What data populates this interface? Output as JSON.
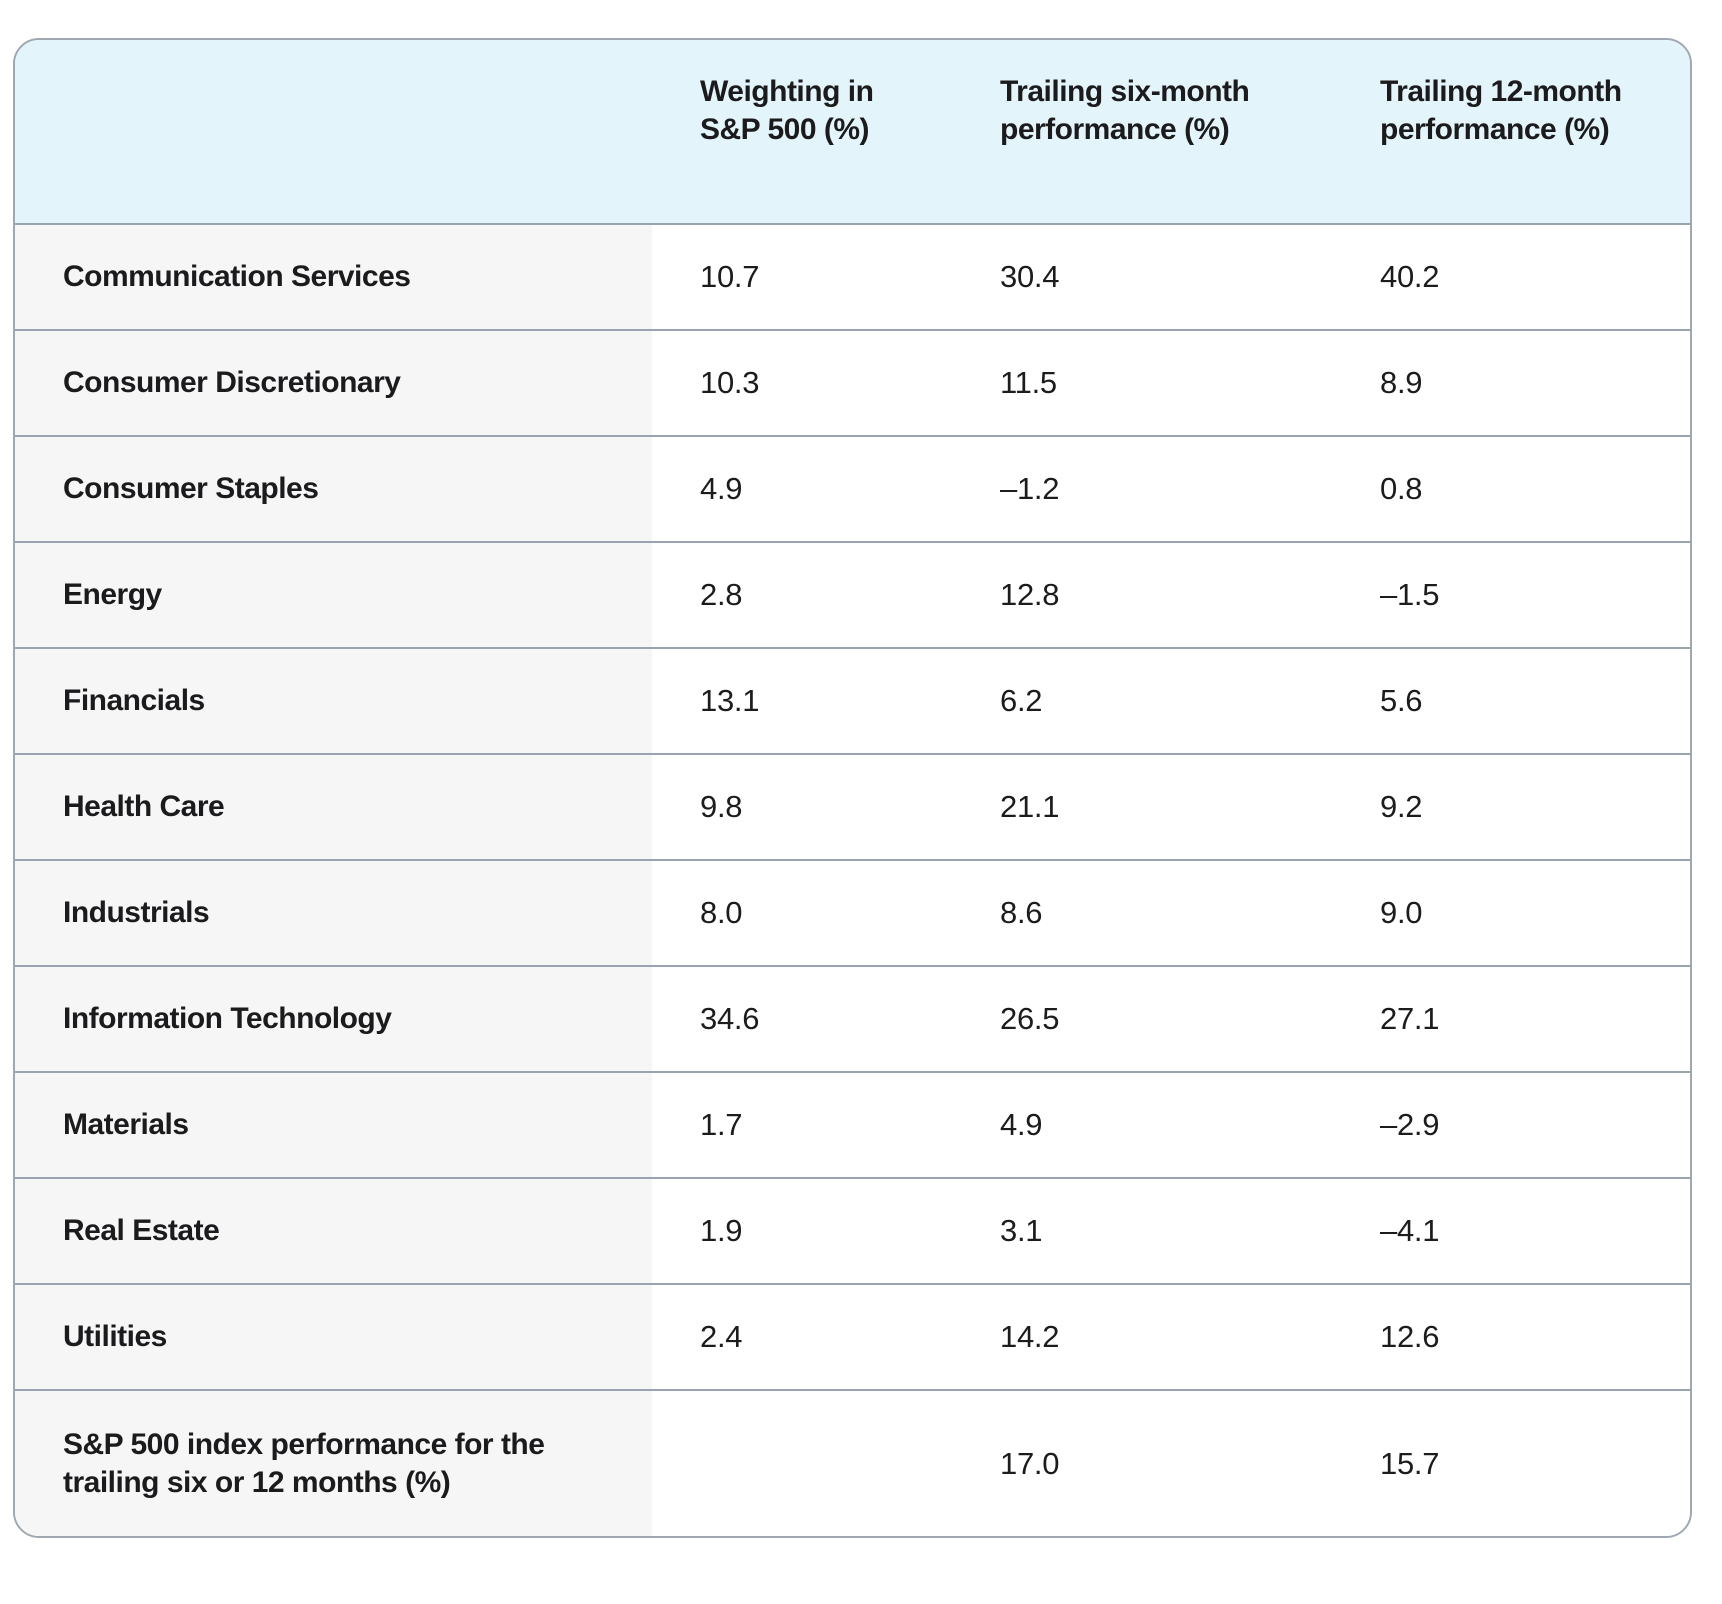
{
  "style": {
    "header_bg": "#e4f4fb",
    "label_column_bg": "#f6f6f7",
    "row_divider_color": "#9aa4ae",
    "outer_border_color": "#9fa8b0",
    "text_color": "#1b1b1d",
    "page_bg": "#ffffff"
  },
  "table": {
    "columns": [
      {
        "label": ""
      },
      {
        "label": "Weighting in S&P 500 (%)"
      },
      {
        "label": "Trailing six-month performance (%)"
      },
      {
        "label": "Trailing 12-month performance (%)"
      }
    ],
    "rows": [
      {
        "label": "Communication Services",
        "weighting": "10.7",
        "six_month": "30.4",
        "twelve_month": "40.2"
      },
      {
        "label": "Consumer Discretionary",
        "weighting": "10.3",
        "six_month": "11.5",
        "twelve_month": "8.9"
      },
      {
        "label": "Consumer Staples",
        "weighting": "4.9",
        "six_month": "–1.2",
        "twelve_month": "0.8"
      },
      {
        "label": "Energy",
        "weighting": "2.8",
        "six_month": "12.8",
        "twelve_month": "–1.5"
      },
      {
        "label": "Financials",
        "weighting": "13.1",
        "six_month": "6.2",
        "twelve_month": "5.6"
      },
      {
        "label": "Health Care",
        "weighting": "9.8",
        "six_month": "21.1",
        "twelve_month": "9.2"
      },
      {
        "label": "Industrials",
        "weighting": "8.0",
        "six_month": "8.6",
        "twelve_month": "9.0"
      },
      {
        "label": "Information Technology",
        "weighting": "34.6",
        "six_month": "26.5",
        "twelve_month": "27.1"
      },
      {
        "label": "Materials",
        "weighting": "1.7",
        "six_month": "4.9",
        "twelve_month": "–2.9"
      },
      {
        "label": "Real Estate",
        "weighting": "1.9",
        "six_month": "3.1",
        "twelve_month": "–4.1"
      },
      {
        "label": "Utilities",
        "weighting": "2.4",
        "six_month": "14.2",
        "twelve_month": "12.6"
      },
      {
        "label": "S&P 500 index performance for the trailing six or 12 months (%)",
        "weighting": "",
        "six_month": "17.0",
        "twelve_month": "15.7"
      }
    ]
  },
  "chart_data": {
    "type": "table",
    "columns": [
      "",
      "Weighting in S&P 500 (%)",
      "Trailing six-month performance (%)",
      "Trailing 12-month performance (%)"
    ],
    "rows": [
      [
        "Communication Services",
        10.7,
        30.4,
        40.2
      ],
      [
        "Consumer Discretionary",
        10.3,
        11.5,
        8.9
      ],
      [
        "Consumer Staples",
        4.9,
        -1.2,
        0.8
      ],
      [
        "Energy",
        2.8,
        12.8,
        -1.5
      ],
      [
        "Financials",
        13.1,
        6.2,
        5.6
      ],
      [
        "Health Care",
        9.8,
        21.1,
        9.2
      ],
      [
        "Industrials",
        8.0,
        8.6,
        9.0
      ],
      [
        "Information Technology",
        34.6,
        26.5,
        27.1
      ],
      [
        "Materials",
        1.7,
        4.9,
        -2.9
      ],
      [
        "Real Estate",
        1.9,
        3.1,
        -4.1
      ],
      [
        "Utilities",
        2.4,
        14.2,
        12.6
      ],
      [
        "S&P 500 index performance for the trailing six or 12 months (%)",
        null,
        17.0,
        15.7
      ]
    ]
  }
}
